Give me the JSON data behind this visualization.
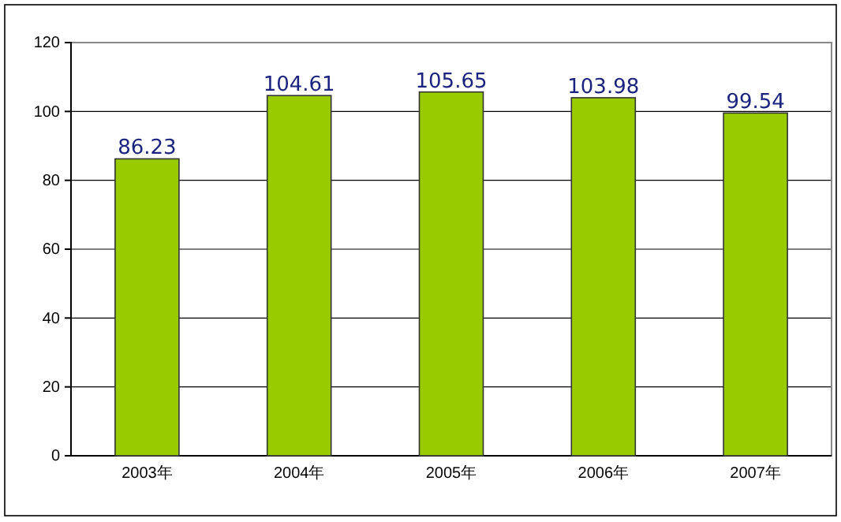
{
  "chart_data": {
    "type": "bar",
    "categories": [
      "2003年",
      "2004年",
      "2005年",
      "2006年",
      "2007年"
    ],
    "values": [
      86.23,
      104.61,
      105.65,
      103.98,
      99.54
    ],
    "color": "#99cc00",
    "ylim": [
      0,
      120
    ],
    "yticks": [
      0,
      20,
      40,
      60,
      80,
      100,
      120
    ],
    "grid": "y",
    "data_labels": true
  }
}
